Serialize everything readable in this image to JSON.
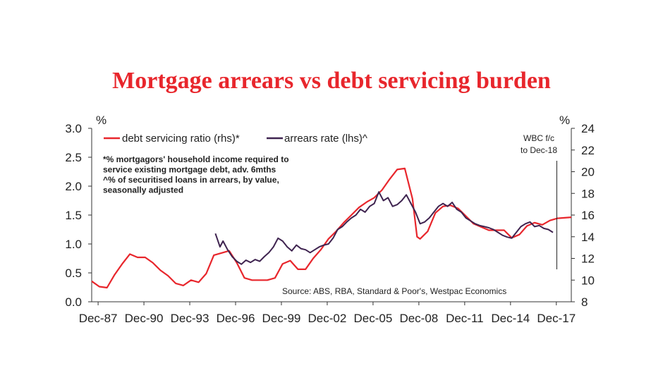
{
  "chart_data": {
    "type": "line",
    "title": "Mortgage arrears vs debt servicing burden",
    "left_axis_unit": "%",
    "right_axis_unit": "%",
    "left_ylim": [
      0.0,
      3.0
    ],
    "right_ylim": [
      8,
      24
    ],
    "left_ticks": [
      "0.0",
      "0.5",
      "1.0",
      "1.5",
      "2.0",
      "2.5",
      "3.0"
    ],
    "right_ticks": [
      "8",
      "10",
      "12",
      "14",
      "16",
      "18",
      "20",
      "22",
      "24"
    ],
    "x_ticks": [
      "Dec-87",
      "Dec-90",
      "Dec-93",
      "Dec-96",
      "Dec-99",
      "Dec-02",
      "Dec-05",
      "Dec-08",
      "Dec-11",
      "Dec-14",
      "Dec-17"
    ],
    "legend": [
      "debt servicing ratio (rhs)*",
      "arrears rate (lhs)^"
    ],
    "notes": [
      "*% mortgagors' household income required to",
      "service existing mortgage debt, adv. 6mths",
      "^% of securitised loans in arrears, by value,",
      "seasonally adjusted"
    ],
    "forecast_label": [
      "WBC f/c",
      "to Dec-18"
    ],
    "source": "Source: ABS, RBA, Standard & Poor's, Westpac Economics",
    "series": [
      {
        "name": "debt servicing ratio (rhs)*",
        "axis": "right",
        "color": "#e8262c",
        "x": [
          1987.5,
          1988.0,
          1988.5,
          1989.0,
          1989.5,
          1990.0,
          1990.5,
          1991.0,
          1991.5,
          1992.0,
          1992.5,
          1993.0,
          1993.5,
          1994.0,
          1994.5,
          1995.0,
          1995.5,
          1996.0,
          1996.5,
          1997.0,
          1997.5,
          1998.0,
          1998.5,
          1999.0,
          1999.5,
          2000.0,
          2000.5,
          2001.0,
          2001.5,
          2002.0,
          2002.5,
          2003.0,
          2003.5,
          2004.0,
          2004.5,
          2005.0,
          2005.5,
          2006.0,
          2006.5,
          2007.0,
          2007.5,
          2008.0,
          2008.5,
          2008.8,
          2009.0,
          2009.5,
          2010.0,
          2010.5,
          2011.0,
          2011.5,
          2012.0,
          2012.5,
          2013.0,
          2013.5,
          2014.0,
          2014.5,
          2015.0,
          2015.5,
          2016.0,
          2016.5,
          2017.0,
          2017.5,
          2018.0,
          2018.9
        ],
        "values": [
          9.9,
          9.4,
          9.3,
          10.5,
          11.5,
          12.4,
          12.1,
          12.1,
          11.6,
          10.9,
          10.4,
          9.7,
          9.5,
          10.0,
          9.8,
          10.6,
          12.3,
          12.5,
          12.7,
          11.6,
          10.2,
          10.0,
          10.0,
          10.0,
          10.2,
          11.5,
          11.8,
          11.0,
          11.0,
          12.0,
          12.8,
          13.8,
          14.5,
          15.3,
          16.0,
          16.7,
          17.2,
          17.6,
          18.3,
          19.3,
          20.2,
          20.3,
          17.5,
          14.0,
          13.8,
          14.5,
          16.2,
          16.8,
          16.9,
          16.6,
          15.9,
          15.2,
          14.9,
          14.6,
          14.6,
          14.6,
          13.9,
          14.2,
          15.0,
          15.3,
          15.1,
          15.5,
          15.7,
          15.8
        ]
      },
      {
        "name": "arrears rate (lhs)^",
        "axis": "left",
        "color": "#3f2450",
        "x": [
          1995.6,
          1995.9,
          1996.1,
          1996.4,
          1996.7,
          1997.0,
          1997.3,
          1997.6,
          1997.9,
          1998.2,
          1998.5,
          1998.8,
          1999.1,
          1999.4,
          1999.7,
          2000.0,
          2000.3,
          2000.6,
          2000.9,
          2001.2,
          2001.5,
          2001.8,
          2002.1,
          2002.4,
          2002.7,
          2003.0,
          2003.3,
          2003.6,
          2003.9,
          2004.2,
          2004.5,
          2004.8,
          2005.1,
          2005.4,
          2005.7,
          2006.0,
          2006.3,
          2006.6,
          2006.9,
          2007.2,
          2007.5,
          2007.8,
          2008.1,
          2008.4,
          2008.7,
          2009.0,
          2009.3,
          2009.6,
          2009.9,
          2010.2,
          2010.5,
          2010.8,
          2011.1,
          2011.4,
          2011.7,
          2012.0,
          2012.3,
          2012.6,
          2012.9,
          2013.2,
          2013.5,
          2013.8,
          2014.1,
          2014.4,
          2014.7,
          2015.0,
          2015.3,
          2015.6,
          2015.9,
          2016.2,
          2016.5,
          2016.8,
          2017.1,
          2017.4,
          2017.7
        ],
        "values": [
          1.18,
          0.95,
          1.05,
          0.9,
          0.78,
          0.7,
          0.65,
          0.72,
          0.68,
          0.73,
          0.7,
          0.78,
          0.85,
          0.95,
          1.1,
          1.05,
          0.95,
          0.88,
          0.98,
          0.92,
          0.9,
          0.85,
          0.9,
          0.95,
          0.98,
          1.0,
          1.1,
          1.25,
          1.3,
          1.38,
          1.45,
          1.5,
          1.6,
          1.55,
          1.65,
          1.7,
          1.9,
          1.75,
          1.8,
          1.65,
          1.68,
          1.75,
          1.85,
          1.7,
          1.55,
          1.35,
          1.38,
          1.45,
          1.55,
          1.65,
          1.7,
          1.65,
          1.72,
          1.6,
          1.55,
          1.45,
          1.4,
          1.35,
          1.32,
          1.3,
          1.28,
          1.25,
          1.2,
          1.15,
          1.12,
          1.1,
          1.2,
          1.3,
          1.35,
          1.38,
          1.3,
          1.32,
          1.27,
          1.25,
          1.2
        ]
      }
    ]
  }
}
